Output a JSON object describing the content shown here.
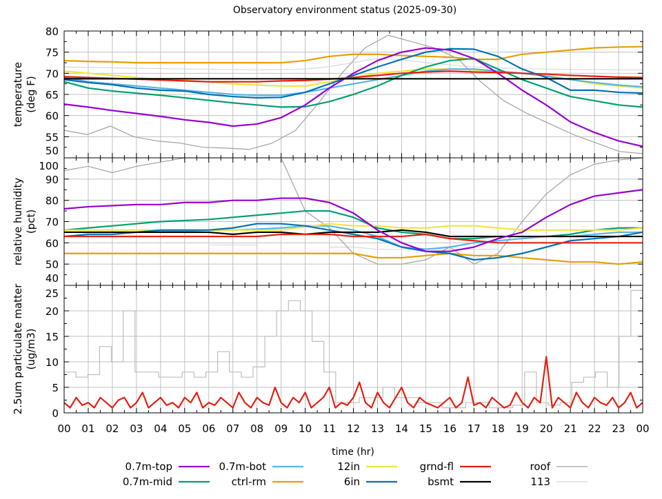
{
  "chart_data": {
    "type": "line",
    "title": "Observatory environment status (2025-09-30)",
    "xlabel": "time (hr)",
    "xlim": [
      0,
      24
    ],
    "x_tick_labels": [
      "00",
      "01",
      "02",
      "03",
      "04",
      "05",
      "06",
      "07",
      "08",
      "09",
      "10",
      "11",
      "12",
      "13",
      "14",
      "15",
      "16",
      "17",
      "18",
      "19",
      "20",
      "21",
      "22",
      "23",
      "00"
    ],
    "grid": true,
    "legend_placement": "bottom",
    "legend": [
      {
        "name": "0.7m-top",
        "color": "#9400d3"
      },
      {
        "name": "0.7m-mid",
        "color": "#009e73"
      },
      {
        "name": "0.7m-bot",
        "color": "#56b4e9"
      },
      {
        "name": "ctrl-rm",
        "color": "#e69f00"
      },
      {
        "name": "12in",
        "color": "#f0e442"
      },
      {
        "name": "6in",
        "color": "#0072b2"
      },
      {
        "name": "grnd-fl",
        "color": "#e51e10"
      },
      {
        "name": "bsmt",
        "color": "#000000"
      },
      {
        "name": "roof",
        "color": "#a0a0a0"
      },
      {
        "name": "113",
        "color": "#d8d8d8"
      }
    ],
    "panels": [
      {
        "ylabel": [
          "temperature",
          "(deg F)"
        ],
        "ylim": [
          50,
          80
        ],
        "yticks": [
          50,
          55,
          60,
          65,
          70,
          75,
          80
        ],
        "series": [
          {
            "name": "113",
            "color": "#d8d8d8",
            "values": [
              71.5,
              71.4,
              71.3,
              71.2,
              71.1,
              71,
              71,
              70.9,
              70.8,
              70.9,
              71,
              71.6,
              72.5,
              73.5,
              73.2,
              72.5,
              72,
              71.5,
              71.3,
              71.1,
              71,
              70.9,
              70.9,
              70.8,
              70.8
            ]
          },
          {
            "name": "roof",
            "color": "#a0a0a0",
            "values": [
              56.5,
              55.5,
              57.5,
              55,
              54,
              53.5,
              52.5,
              52.3,
              52,
              53.5,
              56.5,
              63,
              70,
              76,
              79,
              77.5,
              76,
              73.5,
              68,
              63.5,
              60.5,
              58,
              55.5,
              53.5,
              51.5,
              51
            ]
          },
          {
            "name": "ctrl-rm",
            "color": "#e69f00",
            "values": [
              73,
              72.8,
              72.7,
              72.5,
              72.5,
              72.5,
              72.5,
              72.5,
              72.5,
              72.5,
              73,
              74,
              74.5,
              74.5,
              74.2,
              74,
              73.8,
              73.3,
              73.3,
              74.5,
              75,
              75.5,
              76,
              76.2,
              76.3
            ]
          },
          {
            "name": "12in",
            "color": "#f0e442",
            "values": [
              70.5,
              70,
              69.5,
              69,
              68.5,
              68.3,
              68,
              67.5,
              67.2,
              67,
              67,
              68,
              69,
              70,
              70.5,
              71,
              71,
              70.8,
              70.5,
              70,
              69.5,
              68.5,
              67.5,
              67,
              66.5
            ]
          },
          {
            "name": "0.7m-bot",
            "color": "#56b4e9",
            "values": [
              69,
              68,
              67.5,
              67,
              66.5,
              66,
              65.5,
              65,
              64.8,
              64.8,
              65.5,
              66.5,
              67.5,
              68.5,
              69.5,
              70.5,
              71,
              71,
              70.5,
              70,
              69.3,
              68.5,
              67.8,
              67.2,
              66.8
            ]
          },
          {
            "name": "0.7m-mid",
            "color": "#009e73",
            "values": [
              68,
              66.5,
              65.8,
              65.3,
              64.8,
              64.2,
              63.6,
              63,
              62.5,
              62,
              62.1,
              63.3,
              65,
              67,
              69.5,
              71.5,
              73,
              73.5,
              71,
              68.5,
              66.5,
              64.5,
              63.5,
              62.5,
              62
            ]
          },
          {
            "name": "6in",
            "color": "#0072b2",
            "values": [
              68.5,
              67.8,
              67.3,
              66.5,
              66,
              65.8,
              65,
              64.5,
              64.2,
              64.3,
              65.5,
              67.5,
              69.5,
              71.5,
              73.3,
              75,
              75.8,
              75.7,
              74,
              71,
              69,
              66,
              66,
              65.5,
              65.3
            ]
          },
          {
            "name": "0.7m-top",
            "color": "#9400d3",
            "values": [
              62.7,
              62,
              61.2,
              60.5,
              59.8,
              59,
              58.4,
              57.5,
              58,
              59.5,
              62.5,
              66.5,
              70,
              73,
              75,
              76,
              75.5,
              73.5,
              70,
              66,
              62.5,
              58.5,
              56,
              54,
              52.7
            ]
          },
          {
            "name": "grnd-fl",
            "color": "#e51e10",
            "values": [
              69.2,
              69,
              68.8,
              68.6,
              68.4,
              68.2,
              68,
              68,
              68,
              68.2,
              68.3,
              68.6,
              69,
              69.5,
              70,
              70.3,
              70.5,
              70.3,
              70.2,
              70,
              69.8,
              69.5,
              69.3,
              69.1,
              69
            ]
          },
          {
            "name": "bsmt",
            "color": "#000000",
            "values": [
              68.7,
              68.7,
              68.7,
              68.7,
              68.7,
              68.7,
              68.7,
              68.7,
              68.7,
              68.7,
              68.7,
              68.7,
              68.7,
              68.7,
              68.7,
              68.7,
              68.7,
              68.7,
              68.7,
              68.7,
              68.7,
              68.7,
              68.7,
              68.7,
              68.7
            ]
          }
        ]
      },
      {
        "ylabel": [
          "relative humidity",
          "(pct)"
        ],
        "ylim": [
          40,
          100
        ],
        "yticks": [
          40,
          50,
          60,
          70,
          80,
          90,
          100
        ],
        "series": [
          {
            "name": "113",
            "color": "#d8d8d8",
            "values": [
              null,
              null,
              null,
              null,
              null,
              null,
              59,
              59,
              59,
              null,
              null,
              58,
              58,
              57,
              57,
              57,
              57,
              57,
              57,
              null,
              null,
              null,
              null,
              null,
              null
            ]
          },
          {
            "name": "roof",
            "color": "#a0a0a0",
            "values": [
              94,
              96,
              93,
              96,
              98,
              100,
              100,
              100,
              100,
              100,
              75,
              67,
              55,
              50,
              50,
              52,
              58,
              50,
              55,
              70,
              83,
              92,
              97,
              99,
              100
            ]
          },
          {
            "name": "ctrl-rm",
            "color": "#e69f00",
            "values": [
              55,
              55,
              55,
              55,
              55,
              55,
              55,
              55,
              55,
              55,
              55,
              55,
              55,
              53,
              53,
              54,
              55,
              54,
              54,
              53,
              52,
              51,
              51,
              50,
              51
            ]
          },
          {
            "name": "0.7m-mid",
            "color": "#009e73",
            "values": [
              66,
              67,
              68,
              69,
              70,
              70.5,
              71,
              72,
              73,
              74,
              75,
              75,
              72,
              67,
              65,
              64,
              62,
              62,
              63,
              63,
              63,
              64,
              66,
              67,
              67
            ]
          },
          {
            "name": "0.7m-bot",
            "color": "#56b4e9",
            "values": [
              65,
              65,
              65,
              65,
              65.5,
              65.5,
              66,
              66,
              66.5,
              67,
              68,
              68,
              66,
              63,
              58,
              57,
              58,
              60,
              61,
              62,
              63,
              63,
              64,
              65,
              65
            ]
          },
          {
            "name": "12in",
            "color": "#f0e442",
            "values": [
              66,
              66,
              66,
              66,
              66,
              66,
              66,
              66,
              66,
              66,
              67.5,
              69,
              68,
              68,
              67,
              67,
              68,
              68,
              67,
              66,
              66,
              66,
              66,
              66,
              67
            ]
          },
          {
            "name": "6in",
            "color": "#0072b2",
            "values": [
              63,
              64,
              64,
              65,
              66,
              66,
              66,
              67,
              69,
              69,
              68,
              66,
              64,
              62,
              58,
              56,
              55,
              52,
              53,
              55,
              58,
              61,
              62,
              63,
              65
            ]
          },
          {
            "name": "bsmt",
            "color": "#000000",
            "values": [
              65,
              65,
              65,
              65,
              65,
              65,
              65,
              64,
              65,
              65,
              64,
              65,
              65,
              65,
              66,
              65,
              63,
              63,
              63,
              63,
              63,
              63,
              63,
              63,
              63
            ]
          },
          {
            "name": "grnd-fl",
            "color": "#e51e10",
            "values": [
              63,
              63,
              63,
              63,
              63,
              63,
              63,
              63,
              63,
              64,
              64,
              64,
              63,
              63,
              63,
              64,
              62,
              61,
              60,
              60,
              60,
              60,
              60,
              60,
              60
            ]
          },
          {
            "name": "0.7m-top",
            "color": "#9400d3",
            "values": [
              76,
              77,
              77.5,
              78,
              78,
              79,
              79,
              80,
              80,
              81,
              81,
              79,
              74,
              66,
              60,
              56,
              56,
              58,
              62,
              65,
              72,
              78,
              82,
              83.5,
              85
            ]
          }
        ]
      },
      {
        "ylabel": [
          "2.5um particulate matter",
          "(ug/m3)"
        ],
        "ylim": [
          0,
          25
        ],
        "yticks": [
          0,
          5,
          10,
          15,
          20,
          25
        ],
        "series": [
          {
            "name": "roof",
            "color": "#bdbdbd",
            "step": true,
            "values": [
              8,
              7,
              7.5,
              13,
              10,
              20,
              8,
              8,
              7,
              7,
              8,
              7,
              8,
              12,
              8,
              7,
              9,
              15,
              20,
              22,
              20,
              14,
              8,
              2,
              2,
              3,
              3,
              5,
              3,
              3,
              2,
              2,
              1,
              1,
              2,
              2,
              1,
              1,
              1.5,
              8,
              2,
              1.5,
              2,
              6,
              7,
              8,
              5,
              15,
              24,
              17
            ]
          },
          {
            "name": "grnd-fl",
            "color": "#e51e10",
            "values": [
              2,
              1,
              3,
              1.5,
              2,
              1,
              3,
              2,
              1,
              2.5,
              3,
              1,
              2,
              4,
              1,
              2,
              3,
              1.5,
              2,
              1,
              3,
              2,
              4,
              1,
              2,
              1.5,
              3,
              2,
              1,
              4,
              2,
              1,
              3,
              2,
              1.5,
              5,
              2,
              1,
              3,
              2,
              4,
              1,
              2,
              3,
              5,
              1,
              2,
              1.5,
              3,
              6,
              2,
              1,
              4,
              2,
              1,
              3,
              5,
              2,
              1,
              3,
              2,
              1.5,
              1,
              2,
              3,
              1,
              2,
              7,
              1.5,
              2,
              1,
              3,
              2,
              1,
              1.5,
              4,
              2,
              1,
              3,
              2,
              11,
              1,
              3,
              2,
              1,
              4,
              2,
              1,
              3,
              2,
              1.5,
              3,
              1,
              2,
              4,
              1,
              2
            ]
          }
        ]
      }
    ]
  }
}
